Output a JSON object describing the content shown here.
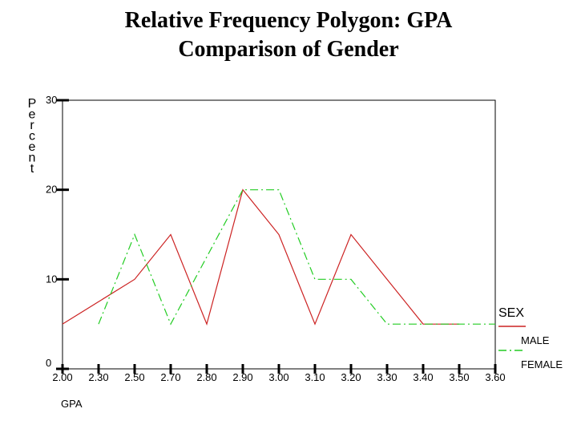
{
  "chart_data": {
    "type": "line",
    "title_line1": "Relative Frequency Polygon: GPA",
    "title_line2": "Comparison of Gender",
    "xlabel": "GPA",
    "ylabel": "Percent",
    "categories": [
      "2.00",
      "2.30",
      "2.50",
      "2.70",
      "2.80",
      "2.90",
      "3.00",
      "3.10",
      "3.20",
      "3.30",
      "3.40",
      "3.50",
      "3.60"
    ],
    "y_ticks": [
      "0",
      "10",
      "20",
      "30"
    ],
    "ylim": [
      0,
      30
    ],
    "grid": false,
    "legend": {
      "title": "SEX",
      "position": "bottom-right"
    },
    "series": [
      {
        "name": "MALE",
        "color": "#cc2222",
        "dash": "solid",
        "values": [
          5,
          7.5,
          10,
          15,
          5,
          20,
          15,
          5,
          15,
          10,
          5,
          5,
          null
        ]
      },
      {
        "name": "FEMALE",
        "color": "#22cc22",
        "dash": "dash-dot",
        "values": [
          null,
          5,
          15,
          5,
          12.5,
          20,
          20,
          10,
          10,
          5,
          5,
          5,
          5
        ]
      }
    ]
  }
}
